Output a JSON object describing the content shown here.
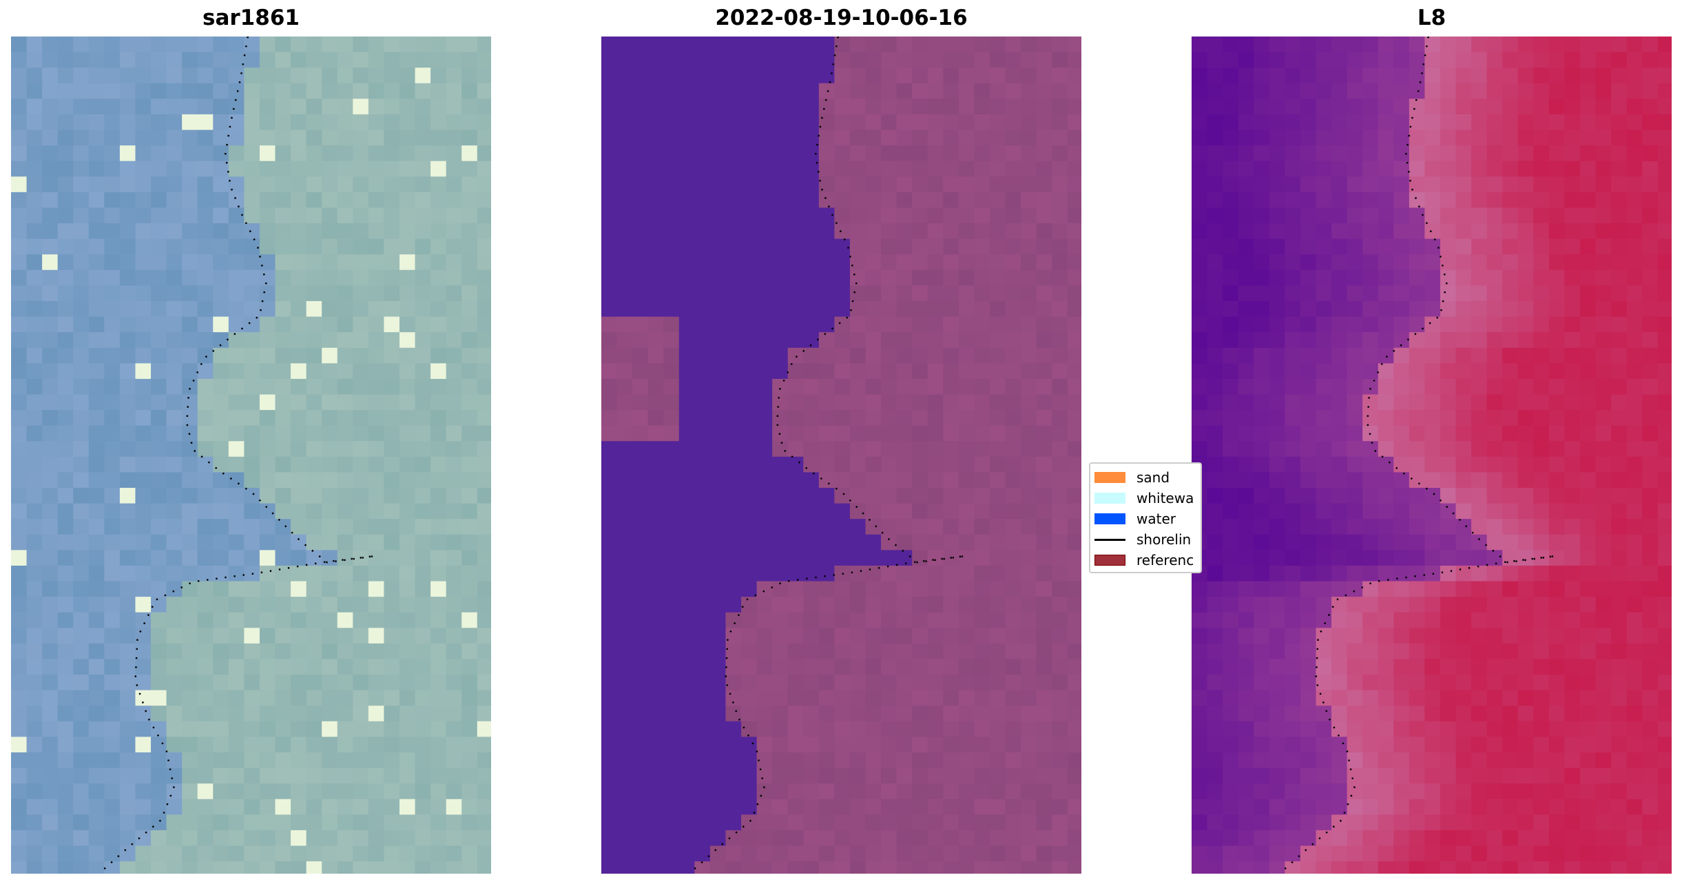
{
  "panels": [
    {
      "title": "sar1861",
      "style": "rgb"
    },
    {
      "title": "2022-08-19-10-06-16",
      "style": "classified"
    },
    {
      "title": "L8",
      "style": "false-color"
    }
  ],
  "legend": {
    "items": [
      {
        "label": "sand",
        "color": "#ff8c3a",
        "type": "patch"
      },
      {
        "label": "whitewa",
        "color": "#c8fcff",
        "type": "patch"
      },
      {
        "label": "water",
        "color": "#0055ff",
        "type": "patch"
      },
      {
        "label": "shorelin",
        "color": "#000000",
        "type": "line"
      },
      {
        "label": "referenc",
        "color": "#a0303a",
        "type": "patch"
      }
    ]
  },
  "colors": {
    "water_class": "#54249a",
    "land_class": "#8f4a7e",
    "shoreline_dots": "#000000"
  }
}
